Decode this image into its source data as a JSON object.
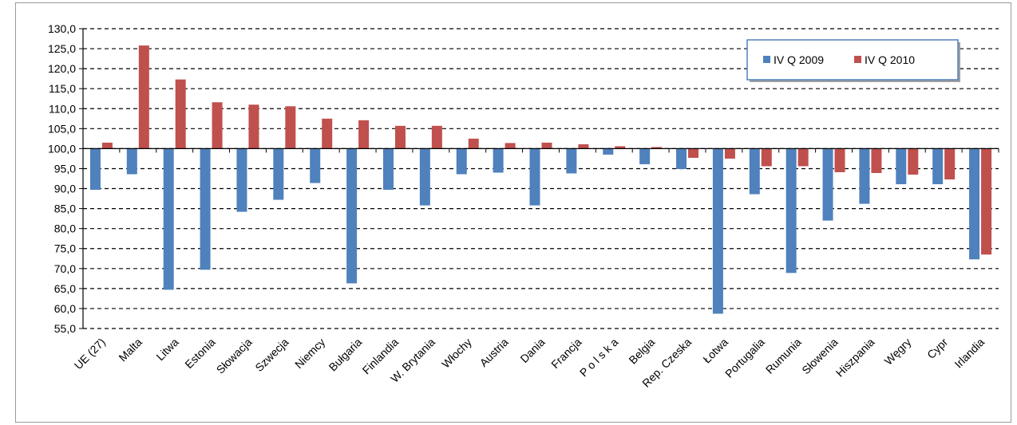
{
  "chart_data": {
    "type": "bar",
    "categories": [
      "UE (27)",
      "Malta",
      "Litwa",
      "Estonia",
      "Słowacja",
      "Szwecja",
      "Niemcy",
      "Bułgaria",
      "Finlandia",
      "W. Brytania",
      "Włochy",
      "Austria",
      "Dania",
      "Francja",
      "P o l s k a",
      "Belgia",
      "Rep. Czeska",
      "Łotwa",
      "Portugalia",
      "Rumunia",
      "Słowenia",
      "Hiszpania",
      "Węgry",
      "Cypr",
      "Irlandia"
    ],
    "series": [
      {
        "name": "IV Q 2009",
        "color": "#4f81bd",
        "values": [
          89.7,
          93.6,
          64.7,
          69.7,
          84.2,
          87.2,
          91.4,
          66.3,
          89.7,
          85.8,
          93.6,
          94.0,
          85.8,
          93.8,
          98.5,
          96.1,
          94.9,
          58.7,
          88.6,
          68.9,
          82.0,
          86.2,
          91.1,
          91.1,
          72.3
        ]
      },
      {
        "name": "IV Q 2010",
        "color": "#c0504d",
        "values": [
          101.5,
          125.8,
          117.3,
          111.6,
          111.0,
          110.6,
          107.5,
          107.1,
          105.7,
          105.7,
          102.5,
          101.4,
          101.5,
          101.1,
          100.6,
          100.4,
          97.7,
          97.5,
          95.6,
          95.6,
          94.1,
          93.9,
          93.5,
          92.3,
          73.5
        ]
      }
    ],
    "baseline": 100.0,
    "ylim": [
      55.0,
      130.0
    ],
    "ytick_labels": [
      "130,0",
      "125,0",
      "120,0",
      "115,0",
      "110,0",
      "105,0",
      "100,0",
      "95,0",
      "90,0",
      "85,0",
      "80,0",
      "75,0",
      "70,0",
      "65,0",
      "60,0",
      "55,0"
    ],
    "grid": true,
    "legend": {
      "position": "top-right"
    },
    "title": "",
    "xlabel": "",
    "ylabel": ""
  }
}
